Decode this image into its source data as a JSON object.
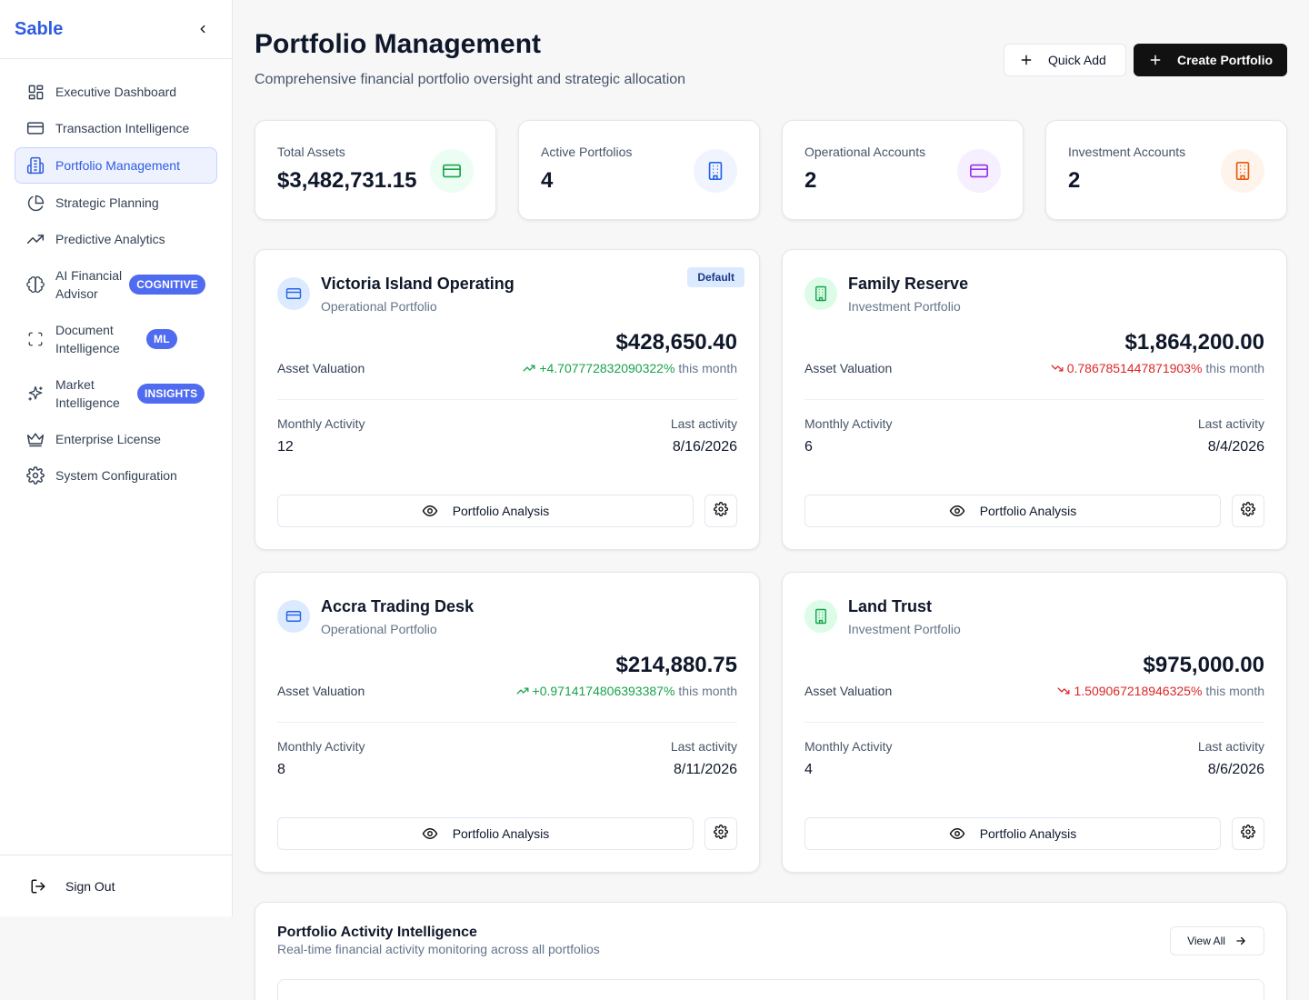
{
  "sidebar": {
    "brand": "Sable",
    "items": [
      {
        "label": "Executive Dashboard",
        "icon": "layout-grid-icon"
      },
      {
        "label": "Transaction Intelligence",
        "icon": "credit-card-icon"
      },
      {
        "label": "Portfolio Management",
        "icon": "building-icon",
        "active": true
      },
      {
        "label": "Strategic Planning",
        "icon": "pie-chart-icon"
      },
      {
        "label": "Predictive Analytics",
        "icon": "trending-up-icon"
      },
      {
        "label": "AI Financial Advisor",
        "icon": "brain-icon",
        "badge": "COGNITIVE"
      },
      {
        "label": "Document Intelligence",
        "icon": "scan-icon",
        "badge": "ML"
      },
      {
        "label": "Market Intelligence",
        "icon": "sparkles-icon",
        "badge": "INSIGHTS"
      },
      {
        "label": "Enterprise License",
        "icon": "crown-icon"
      },
      {
        "label": "System Configuration",
        "icon": "gear-icon"
      }
    ],
    "sign_out": "Sign Out"
  },
  "header": {
    "title": "Portfolio Management",
    "subtitle": "Comprehensive financial portfolio oversight and strategic allocation",
    "quick_add": "Quick Add",
    "create": "Create Portfolio"
  },
  "stats": [
    {
      "label": "Total Assets",
      "value": "$3,482,731.15",
      "icon": "credit-card-icon",
      "color": "#16a34a",
      "bg": "#ecfdf3"
    },
    {
      "label": "Active Portfolios",
      "value": "4",
      "icon": "building-icon",
      "color": "#2563eb",
      "bg": "#eff4ff"
    },
    {
      "label": "Operational Accounts",
      "value": "2",
      "icon": "credit-card-icon",
      "color": "#9333ea",
      "bg": "#f5efff"
    },
    {
      "label": "Investment Accounts",
      "value": "2",
      "icon": "building-icon",
      "color": "#ea580c",
      "bg": "#fff4ec"
    }
  ],
  "portfolios": [
    {
      "name": "Victoria Island Operating",
      "type": "Operational Portfolio",
      "amount": "$428,650.40",
      "asset_label": "Asset Valuation",
      "change": "+4.707772832090322%",
      "trend": "up",
      "change_suffix": "this month",
      "activity_label": "Monthly Activity",
      "activity": "12",
      "last_label": "Last activity",
      "last": "8/16/2026",
      "badge": "Default",
      "icon": "credit-card-icon",
      "analysis": "Portfolio Analysis"
    },
    {
      "name": "Family Reserve",
      "type": "Investment Portfolio",
      "amount": "$1,864,200.00",
      "asset_label": "Asset Valuation",
      "change": "0.7867851447871903%",
      "trend": "down",
      "change_suffix": "this month",
      "activity_label": "Monthly Activity",
      "activity": "6",
      "last_label": "Last activity",
      "last": "8/4/2026",
      "badge": "",
      "icon": "building-icon",
      "analysis": "Portfolio Analysis"
    },
    {
      "name": "Accra Trading Desk",
      "type": "Operational Portfolio",
      "amount": "$214,880.75",
      "asset_label": "Asset Valuation",
      "change": "+0.9714174806393387%",
      "trend": "up",
      "change_suffix": "this month",
      "activity_label": "Monthly Activity",
      "activity": "8",
      "last_label": "Last activity",
      "last": "8/11/2026",
      "badge": "",
      "icon": "credit-card-icon",
      "analysis": "Portfolio Analysis"
    },
    {
      "name": "Land Trust",
      "type": "Investment Portfolio",
      "amount": "$975,000.00",
      "asset_label": "Asset Valuation",
      "change": "1.509067218946325%",
      "trend": "down",
      "change_suffix": "this month",
      "activity_label": "Monthly Activity",
      "activity": "4",
      "last_label": "Last activity",
      "last": "8/6/2026",
      "badge": "",
      "icon": "building-icon",
      "analysis": "Portfolio Analysis"
    }
  ],
  "activity": {
    "title": "Portfolio Activity Intelligence",
    "subtitle": "Real-time financial activity monitoring across all portfolios",
    "view_all": "View All"
  }
}
